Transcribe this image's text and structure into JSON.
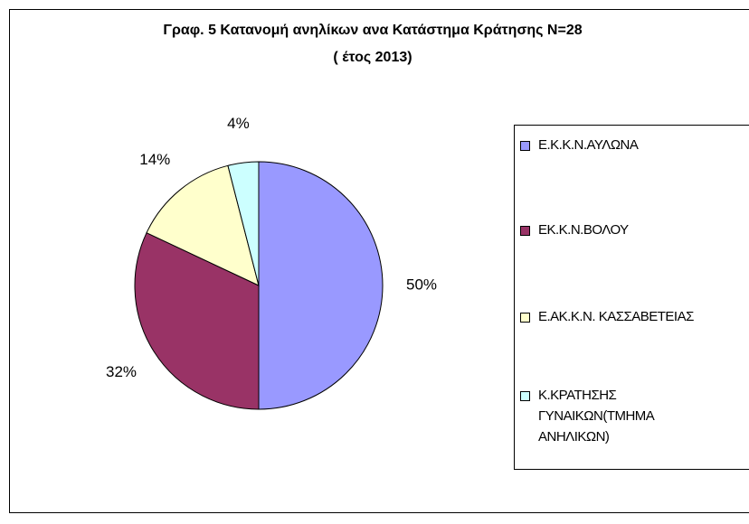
{
  "chart_data": {
    "type": "pie",
    "title": "Γραφ. 5 Κατανομή ανηλίκων  ανα Κατάστημα Κράτησης Ν=28",
    "subtitle": "( έτος 2013)",
    "categories": [
      "Ε.Κ.Κ.Ν.ΑΥΛΩΝΑ",
      "ΕΚ.Κ.Ν.ΒΟΛΟΥ",
      "Ε.ΑΚ.Κ.Ν. ΚΑΣΣΑΒΕΤΕΙΑΣ",
      "Κ.ΚΡΑΤΗΣΗΣ ΓΥΝΑΙΚΩΝ(ΤΜΗΜΑ ΑΝΗΛΙΚΩΝ)"
    ],
    "values": [
      50,
      32,
      14,
      4
    ],
    "value_labels": [
      "50%",
      "32%",
      "14%",
      "4%"
    ],
    "colors": [
      "#9999ff",
      "#993366",
      "#ffffcc",
      "#ccffff"
    ],
    "legend": "right"
  }
}
